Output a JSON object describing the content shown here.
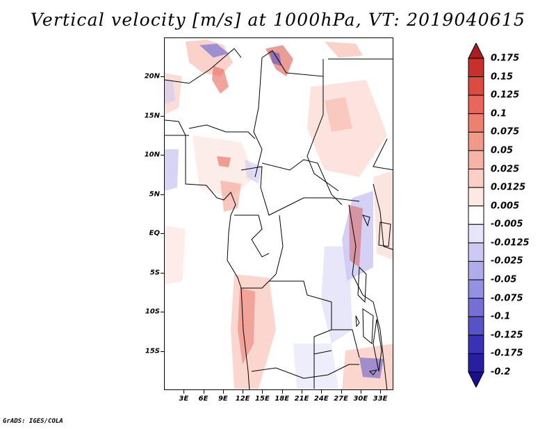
{
  "title": "Vertical velocity [m/s] at 1000hPa, VT: 2019040615",
  "credit": "GrADS: IGES/COLA",
  "map": {
    "lon_range": [
      0,
      35
    ],
    "lat_range": [
      -20,
      25
    ],
    "y_ticks": [
      {
        "label": "20N",
        "lat": 20
      },
      {
        "label": "15N",
        "lat": 15
      },
      {
        "label": "10N",
        "lat": 10
      },
      {
        "label": "5N",
        "lat": 5
      },
      {
        "label": "EQ",
        "lat": 0
      },
      {
        "label": "5S",
        "lat": -5
      },
      {
        "label": "10S",
        "lat": -10
      },
      {
        "label": "15S",
        "lat": -15
      }
    ],
    "x_ticks": [
      {
        "label": "3E",
        "lon": 3
      },
      {
        "label": "6E",
        "lon": 6
      },
      {
        "label": "9E",
        "lon": 9
      },
      {
        "label": "12E",
        "lon": 12
      },
      {
        "label": "15E",
        "lon": 15
      },
      {
        "label": "18E",
        "lon": 18
      },
      {
        "label": "21E",
        "lon": 21
      },
      {
        "label": "24E",
        "lon": 24
      },
      {
        "label": "27E",
        "lon": 27
      },
      {
        "label": "30E",
        "lon": 30
      },
      {
        "label": "33E",
        "lon": 33
      }
    ]
  },
  "colorbar": {
    "labels": [
      "0.175",
      "0.15",
      "0.125",
      "0.1",
      "0.075",
      "0.05",
      "0.025",
      "0.0125",
      "0.005",
      "-0.005",
      "-0.0125",
      "-0.025",
      "-0.05",
      "-0.075",
      "-0.1",
      "-0.125",
      "-0.175",
      "-0.2"
    ],
    "colors": [
      "#a81e24",
      "#c8302c",
      "#dc4a40",
      "#e8665a",
      "#ee8070",
      "#f29a8a",
      "#f6b4a6",
      "#fad0c6",
      "#fde8e2",
      "#ffffff",
      "#e6e6fa",
      "#cccaf4",
      "#b0acec",
      "#9490e2",
      "#7670d6",
      "#5852c8",
      "#3a32b6",
      "#281ea0",
      "#1a0e8a"
    ]
  }
}
